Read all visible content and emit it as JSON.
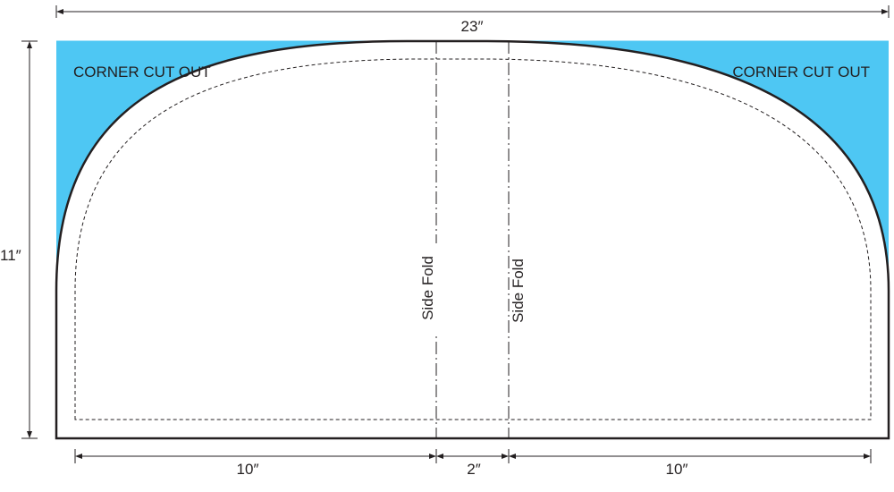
{
  "pattern": {
    "overall_width": "23″",
    "overall_height": "11″",
    "corner_label_left": "CORNER CUT OUT",
    "corner_label_right": "CORNER CUT OUT",
    "fold_left": "Side Fold",
    "fold_right": "Side Fold",
    "left_section_width": "10″",
    "center_section_width": "2″",
    "right_section_width": "10″"
  },
  "colors": {
    "cutout_fill": "#4ec7f3",
    "outline": "#231f20",
    "background": "#ffffff"
  }
}
